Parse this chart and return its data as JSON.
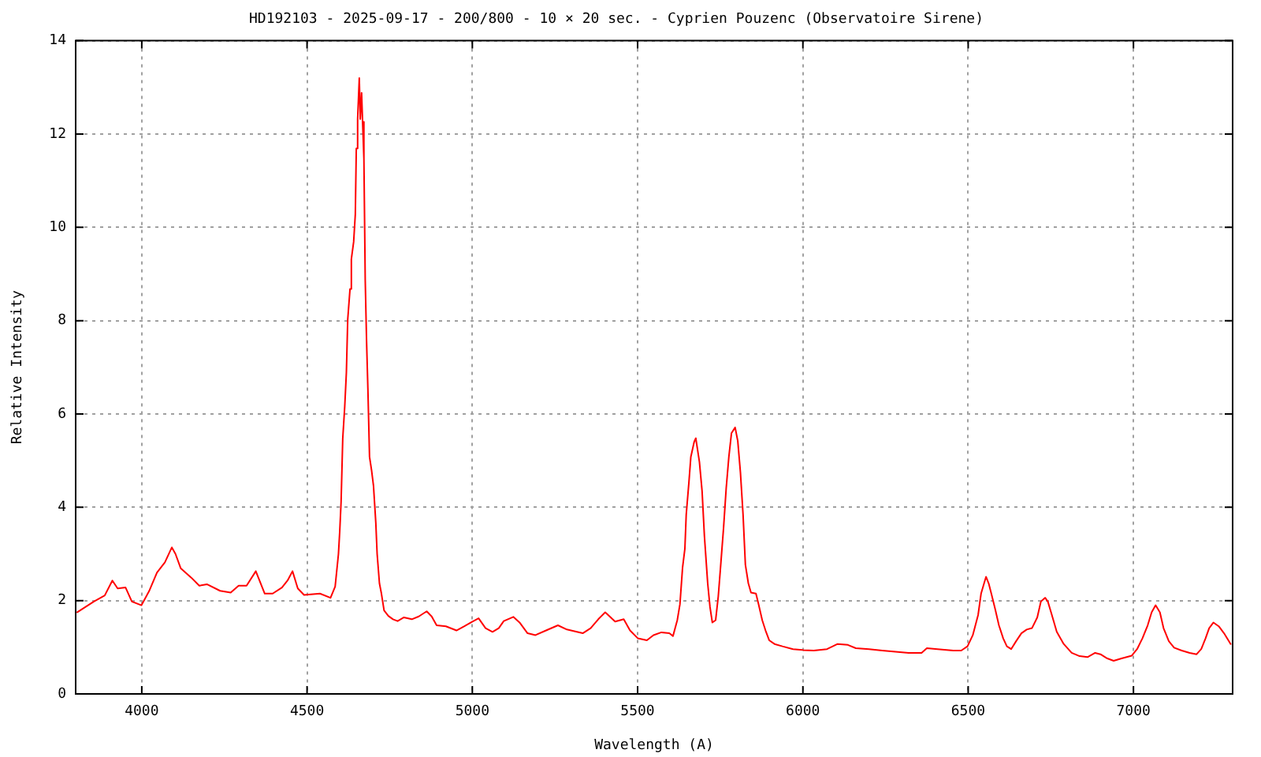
{
  "chart_data": {
    "type": "line",
    "title": "HD192103 - 2025-09-17 - 200/800 - 10 × 20 sec. - Cyprien Pouzenc (Observatoire Sirene)",
    "xlabel": "Wavelength (A)",
    "ylabel": "Relative Intensity",
    "color": "#ff0000",
    "x": [
      3805,
      3855,
      3888,
      3911,
      3927,
      3951,
      3970,
      3999,
      4022,
      4046,
      4070,
      4091,
      4102,
      4118,
      4150,
      4174,
      4197,
      4237,
      4269,
      4293,
      4317,
      4345,
      4372,
      4396,
      4424,
      4441,
      4456,
      4472,
      4491,
      4539,
      4571,
      4585,
      4595,
      4599,
      4603,
      4608,
      4614,
      4619,
      4623,
      4630,
      4634,
      4641,
      4646,
      4649,
      4653,
      4658,
      4661,
      4665,
      4668,
      4672,
      4676,
      4680,
      4684,
      4689,
      4695,
      4701,
      4708,
      4712,
      4719,
      4725,
      4733,
      4746,
      4760,
      4774,
      4793,
      4817,
      4838,
      4862,
      4877,
      4892,
      4920,
      4952,
      4976,
      5000,
      5019,
      5040,
      5061,
      5080,
      5095,
      5124,
      5143,
      5167,
      5191,
      5223,
      5259,
      5286,
      5334,
      5358,
      5381,
      5402,
      5432,
      5458,
      5477,
      5501,
      5528,
      5548,
      5572,
      5596,
      5607,
      5620,
      5628,
      5636,
      5643,
      5647,
      5655,
      5661,
      5671,
      5676,
      5681,
      5687,
      5695,
      5702,
      5712,
      5719,
      5726,
      5736,
      5744,
      5752,
      5760,
      5768,
      5776,
      5784,
      5795,
      5803,
      5811,
      5819,
      5826,
      5835,
      5843,
      5858,
      5866,
      5877,
      5887,
      5898,
      5914,
      5938,
      5970,
      6001,
      6033,
      6073,
      6105,
      6136,
      6160,
      6200,
      6240,
      6320,
      6359,
      6375,
      6407,
      6455,
      6479,
      6498,
      6514,
      6530,
      6539,
      6546,
      6554,
      6562,
      6570,
      6582,
      6593,
      6606,
      6617,
      6630,
      6645,
      6661,
      6677,
      6693,
      6709,
      6720,
      6733,
      6741,
      6752,
      6768,
      6789,
      6813,
      6837,
      6861,
      6884,
      6900,
      6921,
      6940,
      6964,
      6995,
      7011,
      7027,
      7043,
      7055,
      7067,
      7080,
      7091,
      7107,
      7123,
      7146,
      7170,
      7191,
      7205,
      7218,
      7229,
      7242,
      7258,
      7274,
      7294
    ],
    "values": [
      1.75,
      1.98,
      2.11,
      2.43,
      2.26,
      2.28,
      1.98,
      1.9,
      2.2,
      2.6,
      2.82,
      3.14,
      3.0,
      2.69,
      2.49,
      2.32,
      2.35,
      2.21,
      2.17,
      2.32,
      2.32,
      2.63,
      2.15,
      2.15,
      2.28,
      2.43,
      2.63,
      2.26,
      2.12,
      2.15,
      2.06,
      2.3,
      3.0,
      3.5,
      4.12,
      5.48,
      6.16,
      6.89,
      8.02,
      8.68,
      9.32,
      9.69,
      10.28,
      11.69,
      12.32,
      13.2,
      12.32,
      12.88,
      12.26,
      11.47,
      8.87,
      7.57,
      6.55,
      5.08,
      4.8,
      4.46,
      3.67,
      3.0,
      2.37,
      2.15,
      1.79,
      1.67,
      1.6,
      1.56,
      1.64,
      1.6,
      1.66,
      1.77,
      1.66,
      1.47,
      1.45,
      1.36,
      1.45,
      1.55,
      1.62,
      1.41,
      1.33,
      1.41,
      1.56,
      1.65,
      1.53,
      1.3,
      1.26,
      1.36,
      1.47,
      1.38,
      1.3,
      1.41,
      1.6,
      1.75,
      1.55,
      1.6,
      1.36,
      1.19,
      1.15,
      1.26,
      1.32,
      1.3,
      1.24,
      1.58,
      1.92,
      2.71,
      3.11,
      3.84,
      4.52,
      5.08,
      5.4,
      5.48,
      5.25,
      4.97,
      4.35,
      3.39,
      2.37,
      1.86,
      1.53,
      1.58,
      2.09,
      2.82,
      3.56,
      4.41,
      5.08,
      5.59,
      5.71,
      5.42,
      4.75,
      3.84,
      2.77,
      2.37,
      2.17,
      2.15,
      1.92,
      1.58,
      1.36,
      1.15,
      1.07,
      1.02,
      0.96,
      0.94,
      0.93,
      0.96,
      1.07,
      1.05,
      0.98,
      0.96,
      0.93,
      0.88,
      0.88,
      0.98,
      0.96,
      0.93,
      0.93,
      1.02,
      1.26,
      1.69,
      2.15,
      2.32,
      2.51,
      2.37,
      2.15,
      1.81,
      1.47,
      1.19,
      1.02,
      0.96,
      1.13,
      1.3,
      1.38,
      1.41,
      1.64,
      1.98,
      2.06,
      1.98,
      1.72,
      1.33,
      1.07,
      0.88,
      0.81,
      0.79,
      0.88,
      0.85,
      0.76,
      0.71,
      0.76,
      0.82,
      0.96,
      1.19,
      1.47,
      1.75,
      1.9,
      1.75,
      1.41,
      1.13,
      0.99,
      0.93,
      0.88,
      0.85,
      0.96,
      1.19,
      1.41,
      1.53,
      1.45,
      1.3,
      1.07
    ],
    "xlim": [
      3800,
      7300
    ],
    "xticks": [
      4000,
      4500,
      5000,
      5500,
      6000,
      6500,
      7000
    ],
    "ylim": [
      0,
      14
    ],
    "yticks": [
      0,
      2,
      4,
      6,
      8,
      10,
      12,
      14
    ],
    "grid": true,
    "marker": "none",
    "line_style": "solid",
    "legend": false
  }
}
